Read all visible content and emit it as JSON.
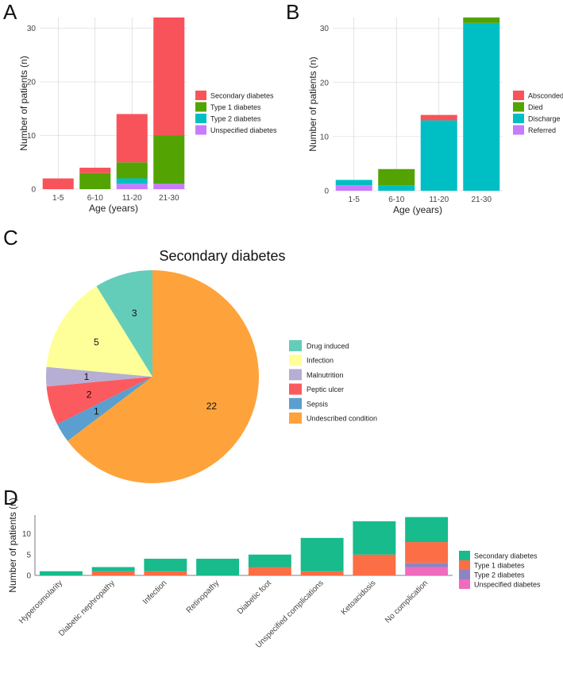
{
  "panels": {
    "a": {
      "label": "A"
    },
    "b": {
      "label": "B"
    },
    "c": {
      "label": "C"
    },
    "d": {
      "label": "D"
    }
  },
  "chart_data": [
    {
      "id": "A",
      "type": "bar",
      "stacked": true,
      "title": "",
      "xlabel": "Age (years)",
      "ylabel": "Number of patients (n)",
      "categories": [
        "1-5",
        "6-10",
        "11-20",
        "21-30"
      ],
      "yticks": [
        0,
        10,
        20,
        30
      ],
      "ylim": [
        0,
        32
      ],
      "grid": true,
      "legend": "right",
      "series": [
        {
          "name": "Unspecified diabetes",
          "color": "#c77cff",
          "values": [
            0,
            0,
            1,
            1
          ]
        },
        {
          "name": "Type 2 diabetes",
          "color": "#00bfc4",
          "values": [
            0,
            0,
            1,
            0
          ]
        },
        {
          "name": "Type 1 diabetes",
          "color": "#53a302",
          "values": [
            0,
            3,
            3,
            9
          ]
        },
        {
          "name": "Secondary diabetes",
          "color": "#f8535a",
          "values": [
            2,
            1,
            9,
            22
          ]
        }
      ],
      "legend_order": [
        "Secondary diabetes",
        "Type 1 diabetes",
        "Type 2 diabetes",
        "Unspecified diabetes"
      ]
    },
    {
      "id": "B",
      "type": "bar",
      "stacked": true,
      "title": "",
      "xlabel": "Age (years)",
      "ylabel": "Number of patients (n)",
      "categories": [
        "1-5",
        "6-10",
        "11-20",
        "21-30"
      ],
      "yticks": [
        0,
        10,
        20,
        30
      ],
      "ylim": [
        0,
        32
      ],
      "grid": true,
      "legend": "right",
      "series": [
        {
          "name": "Referred",
          "color": "#c77cff",
          "values": [
            1,
            0,
            0,
            0
          ]
        },
        {
          "name": "Discharge",
          "color": "#00bfc4",
          "values": [
            1,
            1,
            13,
            31
          ]
        },
        {
          "name": "Died",
          "color": "#53a302",
          "values": [
            0,
            3,
            0,
            1
          ]
        },
        {
          "name": "Absconded",
          "color": "#f8535a",
          "values": [
            0,
            0,
            1,
            0
          ]
        }
      ],
      "legend_order": [
        "Absconded",
        "Died",
        "Discharge",
        "Referred"
      ]
    },
    {
      "id": "C",
      "type": "pie",
      "title": "Secondary diabetes",
      "legend": "right",
      "slices": [
        {
          "name": "Undescribed condition",
          "value": 22,
          "color": "#fea33b"
        },
        {
          "name": "Sepsis",
          "value": 1,
          "color": "#5a9fcf"
        },
        {
          "name": "Peptic ulcer",
          "value": 2,
          "color": "#fb5a5f"
        },
        {
          "name": "Malnutrition",
          "value": 1,
          "color": "#b6aed3"
        },
        {
          "name": "Infection",
          "value": 5,
          "color": "#ffff99"
        },
        {
          "name": "Drug induced",
          "value": 3,
          "color": "#64cdb9"
        }
      ],
      "legend_order": [
        "Drug induced",
        "Infection",
        "Malnutrition",
        "Peptic ulcer",
        "Sepsis",
        "Undescribed condition"
      ]
    },
    {
      "id": "D",
      "type": "bar",
      "stacked": true,
      "title": "",
      "xlabel": "",
      "ylabel": "Number of patients (n)",
      "categories": [
        "Hyperosmolarity",
        "Diabetic nephropathy",
        "Infection",
        "Retinopathy",
        "Diabetic foot",
        "Unspecified complications",
        "Ketoacidosis",
        "No complication"
      ],
      "yticks": [
        0,
        5,
        10
      ],
      "ylim": [
        0,
        14.5
      ],
      "grid": false,
      "legend": "right",
      "series": [
        {
          "name": "Unspecified diabetes",
          "color": "#ef6bc0",
          "values": [
            0,
            0,
            0,
            0,
            0,
            0,
            0,
            2
          ]
        },
        {
          "name": "Type 2 diabetes",
          "color": "#8c85c2",
          "values": [
            0,
            0,
            0,
            0,
            0,
            0,
            0,
            1
          ]
        },
        {
          "name": "Type 1 diabetes",
          "color": "#fc6e45",
          "values": [
            0,
            1,
            1,
            0,
            2,
            1,
            5,
            5
          ]
        },
        {
          "name": "Secondary diabetes",
          "color": "#17bb8c",
          "values": [
            1,
            1,
            3,
            4,
            3,
            8,
            8,
            6
          ]
        }
      ],
      "legend_order": [
        "Secondary diabetes",
        "Type 1 diabetes",
        "Type 2 diabetes",
        "Unspecified diabetes"
      ]
    }
  ]
}
